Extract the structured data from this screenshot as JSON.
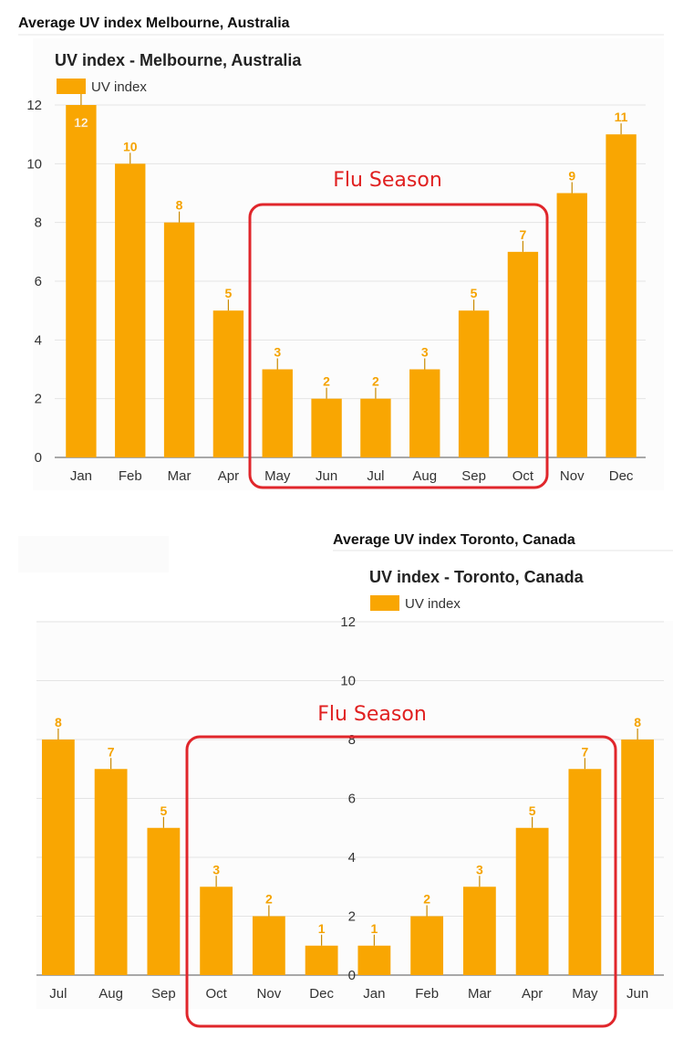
{
  "colors": {
    "bar": "#f9a602",
    "annotation": "#e0262b",
    "grid": "#e4e4e4",
    "axis": "#555555",
    "label": "#f5a300"
  },
  "melbourne": {
    "page_title": "Average UV index Melbourne, Australia",
    "chart_title": "UV index - Melbourne, Australia",
    "legend": "UV index",
    "annotation": "Flu Season",
    "chart_data": {
      "type": "bar",
      "categories": [
        "Jan",
        "Feb",
        "Mar",
        "Apr",
        "May",
        "Jun",
        "Jul",
        "Aug",
        "Sep",
        "Oct",
        "Nov",
        "Dec"
      ],
      "series": [
        {
          "name": "UV index",
          "values": [
            12,
            10,
            8,
            5,
            3,
            2,
            2,
            3,
            5,
            7,
            9,
            11
          ]
        }
      ],
      "yticks": [
        "0",
        "2",
        "4",
        "6",
        "8",
        "10",
        "12"
      ],
      "ylim": [
        0,
        12
      ],
      "grid": true,
      "highlight": {
        "from": "May",
        "to": "Oct"
      }
    }
  },
  "toronto": {
    "page_title": "Average UV index Toronto, Canada",
    "chart_title": "UV index - Toronto, Canada",
    "legend": "UV index",
    "annotation": "Flu Season",
    "chart_data": {
      "type": "bar",
      "categories": [
        "Jul",
        "Aug",
        "Sep",
        "Oct",
        "Nov",
        "Dec",
        "Jan",
        "Feb",
        "Mar",
        "Apr",
        "May",
        "Jun"
      ],
      "series": [
        {
          "name": "UV index",
          "values": [
            8,
            7,
            5,
            3,
            2,
            1,
            1,
            2,
            3,
            5,
            7,
            8
          ]
        }
      ],
      "yticks": [
        "0",
        "2",
        "4",
        "6",
        "8",
        "10",
        "12"
      ],
      "ylim": [
        0,
        12
      ],
      "grid": true,
      "highlight": {
        "from": "Oct",
        "to": "May"
      }
    }
  }
}
